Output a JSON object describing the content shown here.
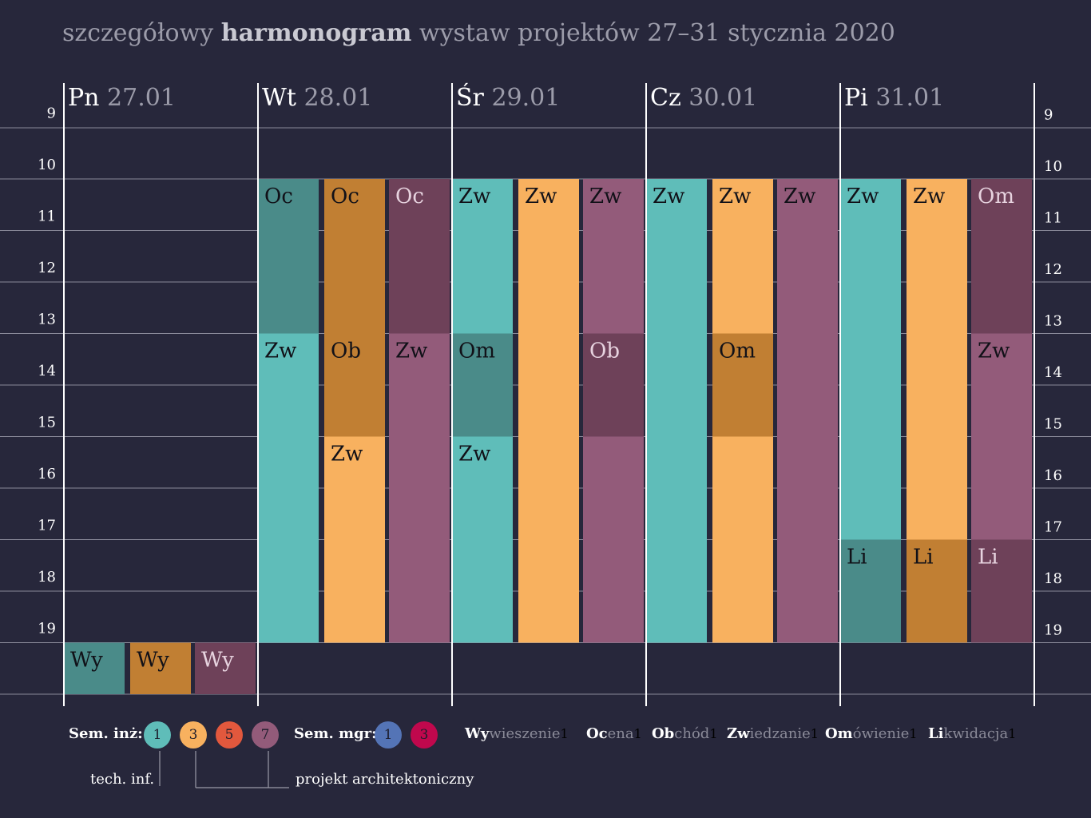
{
  "title": {
    "pre": "szczegółowy ",
    "bold": "harmonogram",
    "post": " wystaw projektów 27–31 stycznia 2020"
  },
  "colors": {
    "background": "#27273b",
    "grid": "#8a8a9a",
    "teal": "#5fbdb9",
    "teal_dark": "#4a8b89",
    "orange": "#f8b15f",
    "orange_dark": "#c17f33",
    "purple": "#935b7a",
    "purple_dark": "#6e4159",
    "red": "#e2583d",
    "blue": "#5474b6",
    "crimson": "#c0084d"
  },
  "chart_data": {
    "type": "table",
    "hours": [
      "9",
      "10",
      "11",
      "12",
      "13",
      "14",
      "15",
      "16",
      "17",
      "18",
      "19"
    ],
    "days": [
      {
        "name": "Pn",
        "date": "27.01"
      },
      {
        "name": "Wt",
        "date": "28.01"
      },
      {
        "name": "Śr",
        "date": "29.01"
      },
      {
        "name": "Cz",
        "date": "30.01"
      },
      {
        "name": "Pi",
        "date": "31.01"
      }
    ],
    "events": [
      {
        "day": 0,
        "track": 0,
        "start": 19,
        "end": 20,
        "code": "Wy",
        "color": "teal_dark"
      },
      {
        "day": 0,
        "track": 1,
        "start": 19,
        "end": 20,
        "code": "Wy",
        "color": "orange_dark"
      },
      {
        "day": 0,
        "track": 2,
        "start": 19,
        "end": 20,
        "code": "Wy",
        "color": "purple_dark"
      },
      {
        "day": 1,
        "track": 0,
        "start": 10,
        "end": 13,
        "code": "Oc",
        "color": "teal_dark"
      },
      {
        "day": 1,
        "track": 0,
        "start": 13,
        "end": 19,
        "code": "Zw",
        "color": "teal"
      },
      {
        "day": 1,
        "track": 1,
        "start": 10,
        "end": 13,
        "code": "Oc",
        "color": "orange_dark"
      },
      {
        "day": 1,
        "track": 1,
        "start": 13,
        "end": 15,
        "code": "Ob",
        "color": "orange_dark"
      },
      {
        "day": 1,
        "track": 1,
        "start": 15,
        "end": 19,
        "code": "Zw",
        "color": "orange"
      },
      {
        "day": 1,
        "track": 2,
        "start": 10,
        "end": 13,
        "code": "Oc",
        "color": "purple_dark"
      },
      {
        "day": 1,
        "track": 2,
        "start": 13,
        "end": 19,
        "code": "Zw",
        "color": "purple"
      },
      {
        "day": 2,
        "track": 0,
        "start": 10,
        "end": 13,
        "code": "Zw",
        "color": "teal"
      },
      {
        "day": 2,
        "track": 0,
        "start": 13,
        "end": 15,
        "code": "Om",
        "color": "teal_dark"
      },
      {
        "day": 2,
        "track": 0,
        "start": 15,
        "end": 19,
        "code": "Zw",
        "color": "teal"
      },
      {
        "day": 2,
        "track": 1,
        "start": 10,
        "end": 19,
        "code": "Zw",
        "color": "orange"
      },
      {
        "day": 2,
        "track": 2,
        "start": 10,
        "end": 13,
        "code": "Zw",
        "color": "purple"
      },
      {
        "day": 2,
        "track": 2,
        "start": 13,
        "end": 15,
        "code": "Ob",
        "color": "purple_dark"
      },
      {
        "day": 2,
        "track": 2,
        "start": 15,
        "end": 19,
        "code": "",
        "color": "purple"
      },
      {
        "day": 3,
        "track": 0,
        "start": 10,
        "end": 19,
        "code": "Zw",
        "color": "teal"
      },
      {
        "day": 3,
        "track": 1,
        "start": 10,
        "end": 13,
        "code": "Zw",
        "color": "orange"
      },
      {
        "day": 3,
        "track": 1,
        "start": 13,
        "end": 15,
        "code": "Om",
        "color": "orange_dark"
      },
      {
        "day": 3,
        "track": 1,
        "start": 15,
        "end": 19,
        "code": "",
        "color": "orange"
      },
      {
        "day": 3,
        "track": 2,
        "start": 10,
        "end": 19,
        "code": "Zw",
        "color": "purple"
      },
      {
        "day": 4,
        "track": 0,
        "start": 10,
        "end": 17,
        "code": "Zw",
        "color": "teal"
      },
      {
        "day": 4,
        "track": 0,
        "start": 17,
        "end": 19,
        "code": "Li",
        "color": "teal_dark"
      },
      {
        "day": 4,
        "track": 1,
        "start": 10,
        "end": 17,
        "code": "Zw",
        "color": "orange"
      },
      {
        "day": 4,
        "track": 1,
        "start": 17,
        "end": 19,
        "code": "Li",
        "color": "orange_dark"
      },
      {
        "day": 4,
        "track": 2,
        "start": 10,
        "end": 13,
        "code": "Om",
        "color": "purple_dark"
      },
      {
        "day": 4,
        "track": 2,
        "start": 13,
        "end": 17,
        "code": "Zw",
        "color": "purple"
      },
      {
        "day": 4,
        "track": 2,
        "start": 17,
        "end": 19,
        "code": "Li",
        "color": "purple_dark"
      }
    ]
  },
  "legend": {
    "inz_label": "Sem. inż:",
    "inz": [
      {
        "num": "1",
        "color": "teal"
      },
      {
        "num": "3",
        "color": "orange"
      },
      {
        "num": "5",
        "color": "red"
      },
      {
        "num": "7",
        "color": "purple"
      }
    ],
    "mgr_label": "Sem. mgr:",
    "mgr": [
      {
        "num": "1",
        "color": "blue"
      },
      {
        "num": "3",
        "color": "crimson"
      }
    ],
    "abbreviations": [
      {
        "key": "Wy",
        "rest": "wieszenie",
        "n": "1"
      },
      {
        "key": "Oc",
        "rest": "ena",
        "n": "1"
      },
      {
        "key": "Ob",
        "rest": "chód",
        "n": "1"
      },
      {
        "key": "Zw",
        "rest": "iedzanie",
        "n": "1"
      },
      {
        "key": "Om",
        "rest": "ówienie",
        "n": "1"
      },
      {
        "key": "Li",
        "rest": "kwidacja",
        "n": "1"
      }
    ],
    "note_tech": "tech. inf.",
    "note_arch": "projekt architektoniczny"
  }
}
